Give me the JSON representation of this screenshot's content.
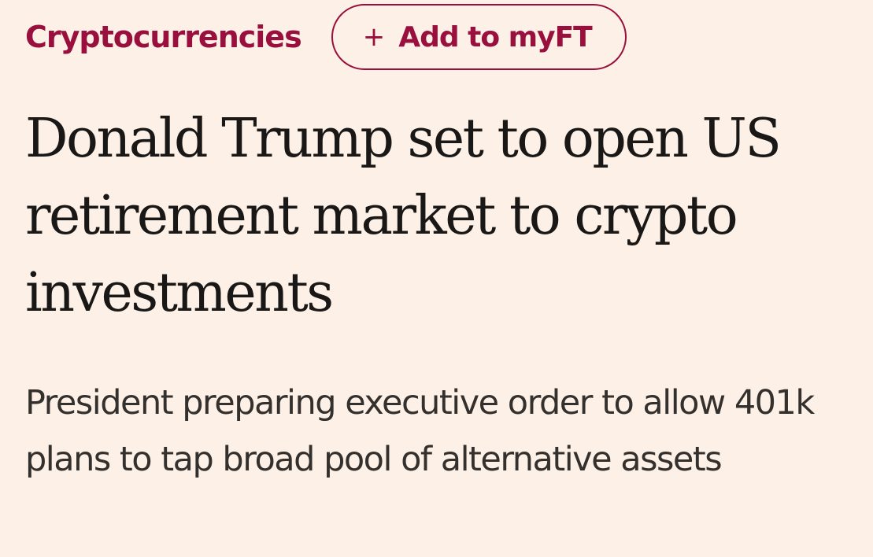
{
  "topic": {
    "label": "Cryptocurrencies"
  },
  "follow": {
    "icon": "plus-icon",
    "icon_glyph": "+",
    "label": "Add to myFT"
  },
  "article": {
    "headline": "Donald Trump set to open US retirement market to crypto investments",
    "standfirst": "President preparing executive order to allow 401k plans to tap broad pool of alternative assets"
  },
  "colors": {
    "background": "#fdf0e6",
    "brand_claret": "#990f3d",
    "headline_text": "#1a1817",
    "body_text": "#33302e"
  }
}
